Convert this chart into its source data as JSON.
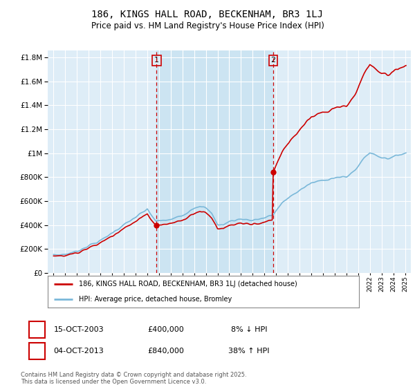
{
  "title": "186, KINGS HALL ROAD, BECKENHAM, BR3 1LJ",
  "subtitle": "Price paid vs. HM Land Registry's House Price Index (HPI)",
  "legend_line1": "186, KINGS HALL ROAD, BECKENHAM, BR3 1LJ (detached house)",
  "legend_line2": "HPI: Average price, detached house, Bromley",
  "annotation1_label": "1",
  "annotation1_date": "15-OCT-2003",
  "annotation1_price": "£400,000",
  "annotation1_hpi": "8% ↓ HPI",
  "annotation2_label": "2",
  "annotation2_date": "04-OCT-2013",
  "annotation2_price": "£840,000",
  "annotation2_hpi": "38% ↑ HPI",
  "footer": "Contains HM Land Registry data © Crown copyright and database right 2025.\nThis data is licensed under the Open Government Licence v3.0.",
  "sale1_x": 2003.79,
  "sale1_y": 400000,
  "sale2_x": 2013.75,
  "sale2_y": 840000,
  "hpi_color": "#7ab8d9",
  "price_color": "#cc0000",
  "vline_color": "#cc0000",
  "background_color": "#deedf7",
  "highlight_color": "#cce4f2",
  "ylim": [
    0,
    1860000
  ],
  "xlim": [
    1994.5,
    2025.5
  ],
  "hpi_data": {
    "years": [
      1995.0,
      1995.08,
      1995.17,
      1995.25,
      1995.33,
      1995.42,
      1995.5,
      1995.58,
      1995.67,
      1995.75,
      1995.83,
      1995.92,
      1996.0,
      1996.08,
      1996.17,
      1996.25,
      1996.33,
      1996.42,
      1996.5,
      1996.58,
      1996.67,
      1996.75,
      1996.83,
      1996.92,
      1997.0,
      1997.08,
      1997.17,
      1997.25,
      1997.33,
      1997.42,
      1997.5,
      1997.58,
      1997.67,
      1997.75,
      1997.83,
      1997.92,
      1998.0,
      1998.08,
      1998.17,
      1998.25,
      1998.33,
      1998.42,
      1998.5,
      1998.58,
      1998.67,
      1998.75,
      1998.83,
      1998.92,
      1999.0,
      1999.08,
      1999.17,
      1999.25,
      1999.33,
      1999.42,
      1999.5,
      1999.58,
      1999.67,
      1999.75,
      1999.83,
      1999.92,
      2000.0,
      2000.08,
      2000.17,
      2000.25,
      2000.33,
      2000.42,
      2000.5,
      2000.58,
      2000.67,
      2000.75,
      2000.83,
      2000.92,
      2001.0,
      2001.08,
      2001.17,
      2001.25,
      2001.33,
      2001.42,
      2001.5,
      2001.58,
      2001.67,
      2001.75,
      2001.83,
      2001.92,
      2002.0,
      2002.08,
      2002.17,
      2002.25,
      2002.33,
      2002.42,
      2002.5,
      2002.58,
      2002.67,
      2002.75,
      2002.83,
      2002.92,
      2003.0,
      2003.08,
      2003.17,
      2003.25,
      2003.33,
      2003.42,
      2003.5,
      2003.58,
      2003.67,
      2003.75,
      2003.83,
      2003.92,
      2004.0,
      2004.08,
      2004.17,
      2004.25,
      2004.33,
      2004.42,
      2004.5,
      2004.58,
      2004.67,
      2004.75,
      2004.83,
      2004.92,
      2005.0,
      2005.08,
      2005.17,
      2005.25,
      2005.33,
      2005.42,
      2005.5,
      2005.58,
      2005.67,
      2005.75,
      2005.83,
      2005.92,
      2006.0,
      2006.08,
      2006.17,
      2006.25,
      2006.33,
      2006.42,
      2006.5,
      2006.58,
      2006.67,
      2006.75,
      2006.83,
      2006.92,
      2007.0,
      2007.08,
      2007.17,
      2007.25,
      2007.33,
      2007.42,
      2007.5,
      2007.58,
      2007.67,
      2007.75,
      2007.83,
      2007.92,
      2008.0,
      2008.08,
      2008.17,
      2008.25,
      2008.33,
      2008.42,
      2008.5,
      2008.58,
      2008.67,
      2008.75,
      2008.83,
      2008.92,
      2009.0,
      2009.08,
      2009.17,
      2009.25,
      2009.33,
      2009.42,
      2009.5,
      2009.58,
      2009.67,
      2009.75,
      2009.83,
      2009.92,
      2010.0,
      2010.08,
      2010.17,
      2010.25,
      2010.33,
      2010.42,
      2010.5,
      2010.58,
      2010.67,
      2010.75,
      2010.83,
      2010.92,
      2011.0,
      2011.08,
      2011.17,
      2011.25,
      2011.33,
      2011.42,
      2011.5,
      2011.58,
      2011.67,
      2011.75,
      2011.83,
      2011.92,
      2012.0,
      2012.08,
      2012.17,
      2012.25,
      2012.33,
      2012.42,
      2012.5,
      2012.58,
      2012.67,
      2012.75,
      2012.83,
      2012.92,
      2013.0,
      2013.08,
      2013.17,
      2013.25,
      2013.33,
      2013.42,
      2013.5,
      2013.58,
      2013.67,
      2013.75,
      2013.83,
      2013.92,
      2014.0,
      2014.08,
      2014.17,
      2014.25,
      2014.33,
      2014.42,
      2014.5,
      2014.58,
      2014.67,
      2014.75,
      2014.83,
      2014.92,
      2015.0,
      2015.08,
      2015.17,
      2015.25,
      2015.33,
      2015.42,
      2015.5,
      2015.58,
      2015.67,
      2015.75,
      2015.83,
      2015.92,
      2016.0,
      2016.08,
      2016.17,
      2016.25,
      2016.33,
      2016.42,
      2016.5,
      2016.58,
      2016.67,
      2016.75,
      2016.83,
      2016.92,
      2017.0,
      2017.08,
      2017.17,
      2017.25,
      2017.33,
      2017.42,
      2017.5,
      2017.58,
      2017.67,
      2017.75,
      2017.83,
      2017.92,
      2018.0,
      2018.08,
      2018.17,
      2018.25,
      2018.33,
      2018.42,
      2018.5,
      2018.58,
      2018.67,
      2018.75,
      2018.83,
      2018.92,
      2019.0,
      2019.08,
      2019.17,
      2019.25,
      2019.33,
      2019.42,
      2019.5,
      2019.58,
      2019.67,
      2019.75,
      2019.83,
      2019.92,
      2020.0,
      2020.08,
      2020.17,
      2020.25,
      2020.33,
      2020.42,
      2020.5,
      2020.58,
      2020.67,
      2020.75,
      2020.83,
      2020.92,
      2021.0,
      2021.08,
      2021.17,
      2021.25,
      2021.33,
      2021.42,
      2021.5,
      2021.58,
      2021.67,
      2021.75,
      2021.83,
      2021.92,
      2022.0,
      2022.08,
      2022.17,
      2022.25,
      2022.33,
      2022.42,
      2022.5,
      2022.58,
      2022.67,
      2022.75,
      2022.83,
      2022.92,
      2023.0,
      2023.08,
      2023.17,
      2023.25,
      2023.33,
      2023.42,
      2023.5,
      2023.58,
      2023.67,
      2023.75,
      2023.83,
      2023.92,
      2024.0,
      2024.08,
      2024.17,
      2024.25,
      2024.33,
      2024.42,
      2024.5,
      2024.58,
      2024.67,
      2024.75,
      2024.83,
      2024.92,
      2025.0
    ],
    "values": [
      148000,
      147000,
      146500,
      146000,
      146500,
      147000,
      148000,
      149000,
      150000,
      151000,
      152000,
      153000,
      154000,
      155000,
      156000,
      157500,
      159000,
      161000,
      163000,
      165000,
      167000,
      169000,
      171000,
      173000,
      175000,
      178000,
      181000,
      184000,
      187000,
      191000,
      195000,
      199000,
      203000,
      207000,
      211000,
      215000,
      219000,
      221000,
      223000,
      225000,
      228000,
      231000,
      234000,
      237000,
      240000,
      243000,
      246000,
      249000,
      252000,
      257000,
      263000,
      270000,
      278000,
      287000,
      296000,
      304000,
      311000,
      317000,
      322000,
      326000,
      330000,
      335000,
      340000,
      345000,
      350000,
      356000,
      362000,
      368000,
      373000,
      377000,
      381000,
      385000,
      389000,
      394000,
      399000,
      405000,
      411000,
      418000,
      425000,
      432000,
      439000,
      446000,
      453000,
      460000,
      467000,
      476000,
      486000,
      497000,
      510000,
      524000,
      538000,
      551000,
      563000,
      572000,
      579000,
      585000,
      390000,
      394000,
      398000,
      403000,
      408000,
      413000,
      418000,
      422000,
      425000,
      427000,
      429000,
      431000,
      433000,
      436000,
      440000,
      445000,
      450000,
      455000,
      458000,
      460000,
      460000,
      458000,
      455000,
      451000,
      448000,
      445000,
      442000,
      440000,
      438000,
      437000,
      437000,
      437000,
      438000,
      439000,
      440000,
      441000,
      443000,
      447000,
      452000,
      458000,
      465000,
      473000,
      480000,
      487000,
      493000,
      498000,
      503000,
      508000,
      513000,
      519000,
      526000,
      534000,
      542000,
      549000,
      554000,
      557000,
      557000,
      554000,
      549000,
      543000,
      537000,
      530000,
      521000,
      511000,
      500000,
      488000,
      476000,
      464000,
      452000,
      441000,
      431000,
      422000,
      415000,
      409000,
      405000,
      402000,
      400000,
      399000,
      400000,
      402000,
      406000,
      411000,
      416000,
      422000,
      428000,
      433000,
      437000,
      440000,
      443000,
      446000,
      449000,
      451000,
      453000,
      455000,
      457000,
      459000,
      461000,
      462000,
      462000,
      462000,
      460000,
      458000,
      455000,
      452000,
      449000,
      446000,
      443000,
      440000,
      438000,
      436000,
      435000,
      435000,
      435000,
      436000,
      438000,
      441000,
      444000,
      448000,
      452000,
      455000,
      459000,
      462000,
      465000,
      468000,
      471000,
      474000,
      477000,
      480000,
      483000,
      486000,
      489000,
      492000,
      496000,
      502000,
      510000,
      519000,
      530000,
      542000,
      554000,
      566000,
      577000,
      587000,
      596000,
      603000,
      610000,
      617000,
      624000,
      631000,
      638000,
      645000,
      652000,
      659000,
      666000,
      672000,
      677000,
      682000,
      686000,
      690000,
      693000,
      697000,
      700000,
      704000,
      708000,
      712000,
      716000,
      720000,
      724000,
      728000,
      732000,
      736000,
      739000,
      742000,
      745000,
      748000,
      750000,
      752000,
      754000,
      756000,
      758000,
      760000,
      762000,
      764000,
      766000,
      768000,
      770000,
      772000,
      774000,
      776000,
      778000,
      780000,
      782000,
      784000,
      786000,
      788000,
      790000,
      792000,
      794000,
      795000,
      796000,
      797000,
      798000,
      799000,
      800000,
      801000,
      802000,
      805000,
      810000,
      818000,
      827000,
      836000,
      844000,
      851000,
      856000,
      860000,
      863000,
      865000,
      868000,
      872000,
      878000,
      887000,
      898000,
      912000,
      927000,
      943000,
      958000,
      972000,
      984000,
      994000,
      1002000,
      1007000,
      1010000,
      1011000,
      1010000,
      1007000,
      1003000,
      998000,
      993000,
      988000,
      983000,
      978000,
      974000,
      970000,
      967000,
      964000,
      961000,
      959000,
      957000,
      956000,
      956000,
      957000,
      958000,
      960000,
      963000,
      966000,
      970000,
      975000,
      980000,
      985000,
      990000,
      994000,
      997000,
      999000,
      1000000,
      1000000,
      999000,
      998000,
      997000,
      996000,
      995000,
      994000,
      994000,
      994000,
      994000,
      995000,
      996000,
      997000,
      998000
    ]
  }
}
